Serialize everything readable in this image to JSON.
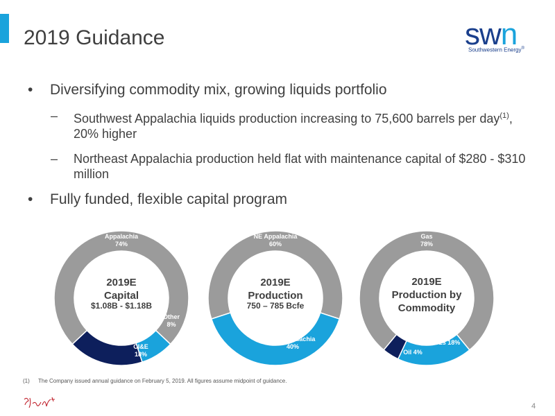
{
  "header": {
    "title": "2019 Guidance"
  },
  "logo": {
    "word_main": "sw",
    "word_accent": "n",
    "tagline": "Southwestern Energy",
    "mark": "®"
  },
  "colors": {
    "gray": "#9b9b9b",
    "blue": "#1aa3dc",
    "navy": "#0d1f5c",
    "accent": "#1aa3dc"
  },
  "bullets": [
    {
      "text": "Diversifying commodity mix, growing liquids portfolio",
      "subs": [
        {
          "text_before": "Southwest Appalachia liquids production increasing to 75,600 barrels per day",
          "sup": "(1)",
          "text_after": ", 20% higher"
        },
        {
          "text_before": "Northeast Appalachia production held flat with maintenance capital of $280 - $310 million",
          "sup": "",
          "text_after": ""
        }
      ]
    },
    {
      "text": "Fully funded, flexible capital program",
      "subs": []
    }
  ],
  "bullet_symbol": "•",
  "dash_symbol": "–",
  "chart_data": [
    {
      "type": "pie",
      "center_title": "2019E Capital",
      "center_subtitle": "$1.08B - $1.18B",
      "slices": [
        {
          "label": "Appalachia",
          "value": 74,
          "display": "74%",
          "color": "#9b9b9b"
        },
        {
          "label": "Other",
          "value": 8,
          "display": "8%",
          "color": "#1aa3dc"
        },
        {
          "label": "CI&E",
          "value": 18,
          "display": "18%",
          "color": "#0d1f5c"
        }
      ]
    },
    {
      "type": "pie",
      "center_title": "2019E Production",
      "center_subtitle": "750 – 785 Bcfe",
      "slices": [
        {
          "label": "NE Appalachia",
          "value": 60,
          "display": "60%",
          "color": "#9b9b9b"
        },
        {
          "label": "SW Appalachia",
          "value": 40,
          "display": "40%",
          "color": "#1aa3dc"
        }
      ]
    },
    {
      "type": "pie",
      "center_title": "2019E Production by Commodity",
      "center_subtitle": "",
      "slices": [
        {
          "label": "Gas",
          "value": 78,
          "display": "78%",
          "color": "#9b9b9b"
        },
        {
          "label": "NGLs",
          "value": 18,
          "display": "18%",
          "color": "#1aa3dc"
        },
        {
          "label": "Oil",
          "value": 4,
          "display": "4%",
          "color": "#0d1f5c"
        }
      ]
    }
  ],
  "footnote": {
    "number": "(1)",
    "text": "The Company issued annual guidance on February 5, 2019. All figures assume midpoint of guidance."
  },
  "page_number": "4"
}
